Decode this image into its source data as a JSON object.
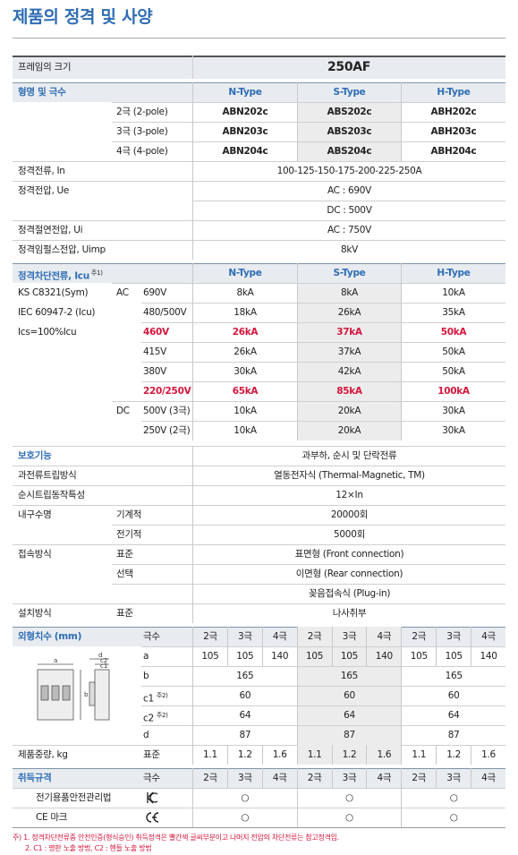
{
  "title": "제품의 정격 및 사양",
  "frame": {
    "label": "프레임의 크기",
    "value": "250AF"
  },
  "model": {
    "label": "형명 및 극수",
    "types": [
      "N-Type",
      "S-Type",
      "H-Type"
    ],
    "rows": [
      {
        "poles": "2극 (2-pole)",
        "models": [
          "ABN202c",
          "ABS202c",
          "ABH202c"
        ]
      },
      {
        "poles": "3극 (3-pole)",
        "models": [
          "ABN203c",
          "ABS203c",
          "ABH203c"
        ]
      },
      {
        "poles": "4극 (4-pole)",
        "models": [
          "ABN204c",
          "ABS204c",
          "ABH204c"
        ]
      }
    ]
  },
  "ratings": [
    {
      "label": "정격전류, In",
      "values": [
        "100-125-150-175-200-225-250A"
      ]
    },
    {
      "label": "정격전압, Ue",
      "values": [
        "AC : 690V",
        "DC : 500V"
      ]
    },
    {
      "label": "정격절연전압, Ui",
      "values": [
        "AC : 750V"
      ]
    },
    {
      "label": "정격임펄스전압, Uimp",
      "values": [
        "8kV"
      ]
    }
  ],
  "breaking": {
    "label": "정격차단전류, Icu",
    "note": "주1)",
    "types": [
      "N-Type",
      "S-Type",
      "H-Type"
    ],
    "standards": [
      "KS C8321(Sym)",
      "IEC 60947-2 (Icu)",
      "Ics=100%Icu"
    ],
    "groups": [
      {
        "current": "AC",
        "rows": [
          {
            "voltage": "690V",
            "values": [
              "8kA",
              "8kA",
              "10kA"
            ],
            "highlight": false
          },
          {
            "voltage": "480/500V",
            "values": [
              "18kA",
              "26kA",
              "35kA"
            ],
            "highlight": false
          },
          {
            "voltage": "460V",
            "values": [
              "26kA",
              "37kA",
              "50kA"
            ],
            "highlight": true
          },
          {
            "voltage": "415V",
            "values": [
              "26kA",
              "37kA",
              "50kA"
            ],
            "highlight": false
          },
          {
            "voltage": "380V",
            "values": [
              "30kA",
              "42kA",
              "50kA"
            ],
            "highlight": false
          },
          {
            "voltage": "220/250V",
            "values": [
              "65kA",
              "85kA",
              "100kA"
            ],
            "highlight": true
          }
        ]
      },
      {
        "current": "DC",
        "rows": [
          {
            "voltage": "500V (3극)",
            "values": [
              "10kA",
              "20kA",
              "30kA"
            ],
            "highlight": false
          },
          {
            "voltage": "250V (2극)",
            "values": [
              "10kA",
              "20kA",
              "30kA"
            ],
            "highlight": false
          }
        ]
      }
    ]
  },
  "functions": [
    {
      "label": "보호기능",
      "rows": [
        {
          "value": "과부하, 순시 및 단락전류"
        }
      ]
    },
    {
      "label": "과전류트립방식",
      "rows": [
        {
          "value": "열동전자식 (Thermal-Magnetic, TM)"
        }
      ]
    },
    {
      "label": "순시트립동작특성",
      "rows": [
        {
          "value": "12×In"
        }
      ]
    },
    {
      "label": "내구수명",
      "rows": [
        {
          "sub": "기계적",
          "value": "20000회"
        },
        {
          "sub": "전기적",
          "value": "5000회"
        }
      ]
    },
    {
      "label": "접속방식",
      "rows": [
        {
          "sub": "표준",
          "value": "표면형 (Front connection)"
        },
        {
          "sub": "선택",
          "value": "이면형 (Rear connection)"
        },
        {
          "value": "꽂음접속식 (Plug-in)"
        }
      ]
    },
    {
      "label": "설치방식",
      "rows": [
        {
          "sub": "표준",
          "value": "나사취부"
        }
      ]
    }
  ],
  "dimensions": {
    "label": "외형치수 (mm)",
    "poles_label": "극수",
    "poles": [
      "2극",
      "3극",
      "4극",
      "2극",
      "3극",
      "4극",
      "2극",
      "3극",
      "4극"
    ],
    "drawing_labels": [
      "a",
      "b",
      "d",
      "c2",
      "c1"
    ],
    "rows": [
      {
        "name": "a",
        "values": [
          105,
          105,
          140,
          105,
          105,
          140,
          105,
          105,
          140
        ]
      },
      {
        "name": "b",
        "values": [
          165,
          165,
          165
        ]
      },
      {
        "name": "c1",
        "note": "주2)",
        "values": [
          60,
          60,
          60
        ]
      },
      {
        "name": "c2",
        "note": "주2)",
        "values": [
          64,
          64,
          64
        ]
      },
      {
        "name": "d",
        "values": [
          87,
          87,
          87
        ]
      }
    ]
  },
  "weight": {
    "label": "제품중량, kg",
    "sub": "표준",
    "values": [
      1.1,
      1.2,
      1.6,
      1.1,
      1.2,
      1.6,
      1.1,
      1.2,
      1.6
    ]
  },
  "certs": {
    "label": "취득규격",
    "poles_label": "극수",
    "poles": [
      "2극",
      "3극",
      "4극",
      "2극",
      "3극",
      "4극",
      "2극",
      "3극",
      "4극"
    ],
    "rows": [
      {
        "name": "전기용품안전관리법",
        "marks": [
          "○",
          "○",
          "○"
        ]
      },
      {
        "name": "CE 마크",
        "marks": [
          "○",
          "○",
          "○"
        ]
      }
    ]
  },
  "footnotes": [
    "주) 1. 정격차단전류중 안전인증(형식승인) 취득정격은 빨간색 글씨부분이고 나머지 전압의 차단전류는 참고정격임.",
    "2. C1 : 명판 노출 방법, C2 : 핸들 노출 방법"
  ]
}
